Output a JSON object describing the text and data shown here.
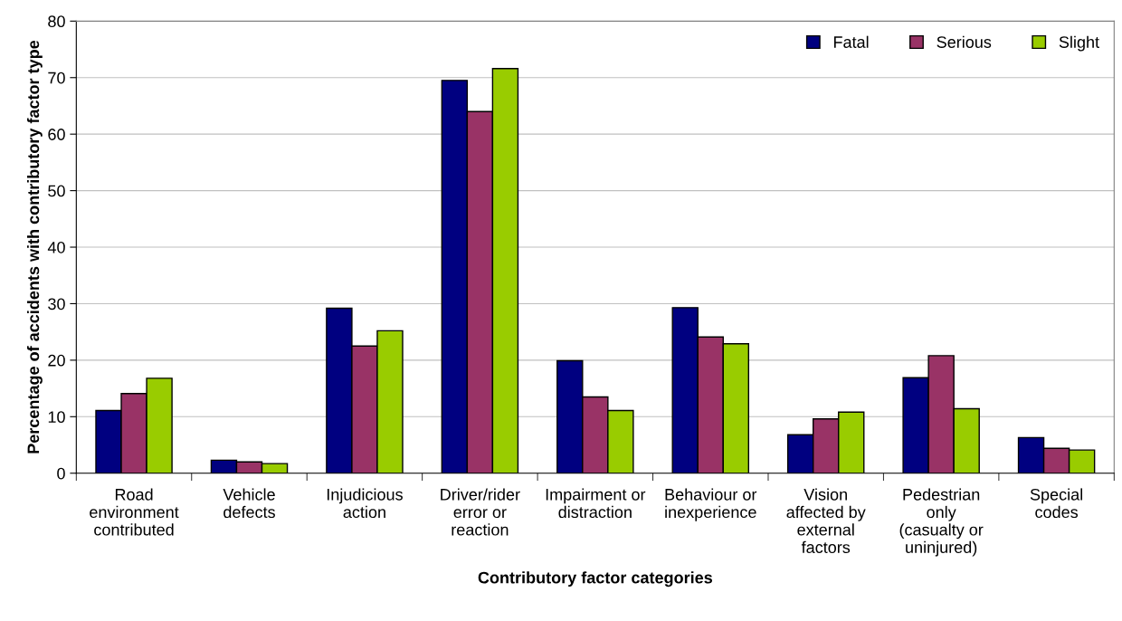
{
  "chart_data": {
    "type": "bar",
    "xlabel": "Contributory factor categories",
    "ylabel": "Percentage of accidents with contributory factor type",
    "categories": [
      "Road\nenvironment\ncontributed",
      "Vehicle\ndefects",
      "Injudicious\naction",
      "Driver/rider\nerror or\nreaction",
      "Impairment or\ndistraction",
      "Behaviour or\ninexperience",
      "Vision\naffected by\nexternal\nfactors",
      "Pedestrian\nonly\n(casualty or\nuninjured)",
      "Special\ncodes"
    ],
    "series": [
      {
        "name": "Fatal",
        "color": "#000080",
        "values": [
          11.1,
          2.3,
          29.2,
          69.5,
          19.9,
          29.3,
          6.8,
          16.9,
          6.3
        ]
      },
      {
        "name": "Serious",
        "color": "#993366",
        "values": [
          14.1,
          2.0,
          22.5,
          64.0,
          13.5,
          24.1,
          9.6,
          20.8,
          4.4
        ]
      },
      {
        "name": "Slight",
        "color": "#99cc00",
        "values": [
          16.8,
          1.7,
          25.2,
          71.6,
          11.1,
          22.9,
          10.8,
          11.4,
          4.1
        ]
      }
    ],
    "ylim": [
      0,
      80
    ],
    "yticks": [
      0,
      10,
      20,
      30,
      40,
      50,
      60,
      70,
      80
    ],
    "grid": "y",
    "legend": "top right"
  }
}
